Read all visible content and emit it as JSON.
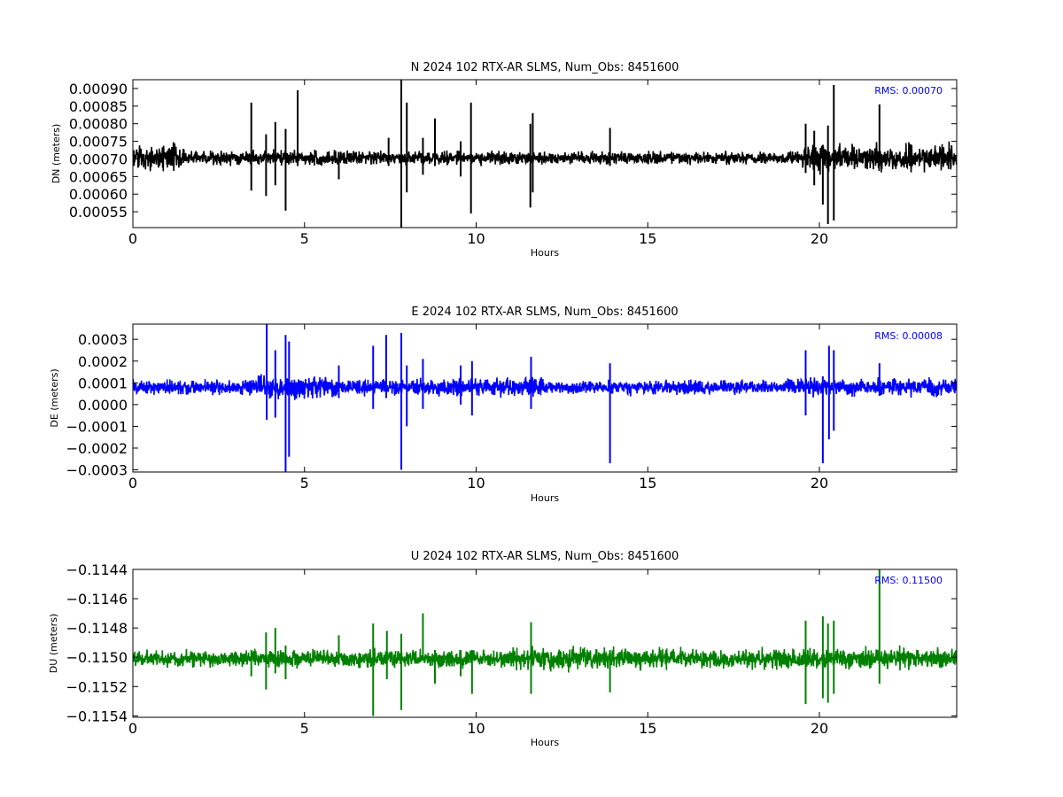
{
  "chart_data": [
    {
      "type": "line",
      "title": "N 2024 102 RTX-AR  SLMS, Num_Obs: 8451600",
      "xlabel": "Hours",
      "ylabel": "DN (meters)",
      "xlim": [
        0,
        24
      ],
      "ylim": [
        0.000505,
        0.000925
      ],
      "xticks": [
        0,
        5,
        10,
        15,
        20
      ],
      "xtick_labels": [
        "0",
        "5",
        "10",
        "15",
        "20"
      ],
      "yticks": [
        0.00055,
        0.0006,
        0.00065,
        0.0007,
        0.00075,
        0.0008,
        0.00085,
        0.0009
      ],
      "ytick_labels": [
        "0.00055",
        "0.00060",
        "0.00065",
        "0.00070",
        "0.00075",
        "0.00080",
        "0.00085",
        "0.00090"
      ],
      "annotation": "RMS:  0.00070",
      "annotation_color": "#0000ff",
      "series_color": "#000000",
      "grid": false,
      "baseline": 0.000703,
      "noise": [
        {
          "x": [
            0,
            1.5
          ],
          "amplitude": 3.2e-05
        },
        {
          "x": [
            1.5,
            7
          ],
          "amplitude": 1.8e-05
        },
        {
          "x": [
            7,
            12
          ],
          "amplitude": 1.6e-05
        },
        {
          "x": [
            12,
            19.5
          ],
          "amplitude": 1.5e-05
        },
        {
          "x": [
            19.5,
            24
          ],
          "amplitude": 3.2e-05
        }
      ],
      "spikes": [
        {
          "x": 3.45,
          "high": 0.00086,
          "low": 0.00061
        },
        {
          "x": 3.88,
          "high": 0.00077,
          "low": 0.000595
        },
        {
          "x": 4.15,
          "high": 0.000805,
          "low": 0.000625
        },
        {
          "x": 4.45,
          "high": 0.000785,
          "low": 0.000553
        },
        {
          "x": 4.8,
          "high": 0.000895,
          "low": 0.00068
        },
        {
          "x": 6.0,
          "high": 0.00072,
          "low": 0.000642
        },
        {
          "x": 7.45,
          "high": 0.00076,
          "low": 0.00068
        },
        {
          "x": 7.82,
          "high": 0.000925,
          "low": 0.000505
        },
        {
          "x": 7.98,
          "high": 0.00086,
          "low": 0.000605
        },
        {
          "x": 8.45,
          "high": 0.00076,
          "low": 0.000655
        },
        {
          "x": 8.8,
          "high": 0.000815,
          "low": 0.00068
        },
        {
          "x": 9.55,
          "high": 0.00075,
          "low": 0.00065
        },
        {
          "x": 9.85,
          "high": 0.00086,
          "low": 0.000545
        },
        {
          "x": 11.58,
          "high": 0.0008,
          "low": 0.000562
        },
        {
          "x": 11.65,
          "high": 0.00083,
          "low": 0.000605
        },
        {
          "x": 13.9,
          "high": 0.000788,
          "low": 0.00068
        },
        {
          "x": 19.6,
          "high": 0.0008,
          "low": 0.00066
        },
        {
          "x": 19.85,
          "high": 0.00078,
          "low": 0.000625
        },
        {
          "x": 20.1,
          "high": 0.00074,
          "low": 0.00057
        },
        {
          "x": 20.25,
          "high": 0.000795,
          "low": 0.000515
        },
        {
          "x": 20.42,
          "high": 0.00091,
          "low": 0.000525
        },
        {
          "x": 21.75,
          "high": 0.000855,
          "low": 0.00068
        }
      ]
    },
    {
      "type": "line",
      "title": "E 2024 102 RTX-AR  SLMS, Num_Obs: 8451600",
      "xlabel": "Hours",
      "ylabel": "DE (meters)",
      "xlim": [
        0,
        24
      ],
      "ylim": [
        -0.00031,
        0.00037
      ],
      "xticks": [
        0,
        5,
        10,
        15,
        20
      ],
      "xtick_labels": [
        "0",
        "5",
        "10",
        "15",
        "20"
      ],
      "yticks": [
        -0.0003,
        -0.0002,
        -0.0001,
        0.0,
        0.0001,
        0.0002,
        0.0003
      ],
      "ytick_labels": [
        "−0.0003",
        "−0.0002",
        "−0.0001",
        "0.0000",
        "0.0001",
        "0.0002",
        "0.0003"
      ],
      "annotation": "RMS:  0.00008",
      "annotation_color": "#0000ff",
      "series_color": "#0000ff",
      "grid": false,
      "baseline": 8e-05,
      "noise": [
        {
          "x": [
            0,
            3.5
          ],
          "amplitude": 3e-05
        },
        {
          "x": [
            3.5,
            6
          ],
          "amplitude": 4.5e-05
        },
        {
          "x": [
            6,
            12
          ],
          "amplitude": 3.5e-05
        },
        {
          "x": [
            12,
            19
          ],
          "amplitude": 2.8e-05
        },
        {
          "x": [
            19,
            24
          ],
          "amplitude": 3.5e-05
        }
      ],
      "spikes": [
        {
          "x": 3.9,
          "high": 0.00037,
          "low": -7e-05
        },
        {
          "x": 4.15,
          "high": 0.00025,
          "low": -6e-05
        },
        {
          "x": 4.45,
          "high": 0.00032,
          "low": -0.00031
        },
        {
          "x": 4.55,
          "high": 0.00029,
          "low": -0.00024
        },
        {
          "x": 6.0,
          "high": 0.00018,
          "low": 3e-05
        },
        {
          "x": 7.0,
          "high": 0.00027,
          "low": -2e-05
        },
        {
          "x": 7.38,
          "high": 0.00032,
          "low": 3e-05
        },
        {
          "x": 7.82,
          "high": 0.00033,
          "low": -0.0003
        },
        {
          "x": 7.98,
          "high": 0.00018,
          "low": -0.0001
        },
        {
          "x": 8.45,
          "high": 0.00021,
          "low": -2e-05
        },
        {
          "x": 9.55,
          "high": 0.00018,
          "low": 0.0
        },
        {
          "x": 9.88,
          "high": 0.0002,
          "low": -5e-05
        },
        {
          "x": 11.6,
          "high": 0.00022,
          "low": -2e-05
        },
        {
          "x": 13.9,
          "high": 0.00019,
          "low": -0.00027
        },
        {
          "x": 19.6,
          "high": 0.00025,
          "low": -5e-05
        },
        {
          "x": 20.1,
          "high": 0.00013,
          "low": -0.00027
        },
        {
          "x": 20.28,
          "high": 0.00027,
          "low": -0.00016
        },
        {
          "x": 20.42,
          "high": 0.00025,
          "low": -0.00012
        },
        {
          "x": 21.75,
          "high": 0.00019,
          "low": 4e-05
        }
      ]
    },
    {
      "type": "line",
      "title": "U 2024 102 RTX-AR  SLMS, Num_Obs: 8451600",
      "xlabel": "Hours",
      "ylabel": "DU (meters)",
      "xlim": [
        0,
        24
      ],
      "ylim": [
        -0.11541,
        -0.1144
      ],
      "xticks": [
        0,
        5,
        10,
        15,
        20
      ],
      "xtick_labels": [
        "0",
        "5",
        "10",
        "15",
        "20"
      ],
      "yticks": [
        -0.1154,
        -0.1152,
        -0.115,
        -0.1148,
        -0.1146,
        -0.1144
      ],
      "ytick_labels": [
        "−0.1154",
        "−0.1152",
        "−0.1150",
        "−0.1148",
        "−0.1146",
        "−0.1144"
      ],
      "annotation": "RMS:  0.11500",
      "annotation_color": "#0000ff",
      "series_color": "#008000",
      "grid": false,
      "baseline": -0.11501,
      "noise": [
        {
          "x": [
            0,
            11
          ],
          "amplitude": 5e-05
        },
        {
          "x": [
            11,
            14
          ],
          "amplitude": 6.5e-05
        },
        {
          "x": [
            14,
            19
          ],
          "amplitude": 6e-05
        },
        {
          "x": [
            19,
            24
          ],
          "amplitude": 6e-05
        }
      ],
      "spikes": [
        {
          "x": 3.45,
          "high": -0.11495,
          "low": -0.11513
        },
        {
          "x": 3.88,
          "high": -0.11483,
          "low": -0.11522
        },
        {
          "x": 4.15,
          "high": -0.1148,
          "low": -0.11511
        },
        {
          "x": 4.45,
          "high": -0.11492,
          "low": -0.11515
        },
        {
          "x": 6.0,
          "high": -0.11485,
          "low": -0.11505
        },
        {
          "x": 7.0,
          "high": -0.11477,
          "low": -0.1154
        },
        {
          "x": 7.4,
          "high": -0.11482,
          "low": -0.11515
        },
        {
          "x": 7.82,
          "high": -0.11484,
          "low": -0.11536
        },
        {
          "x": 8.45,
          "high": -0.1147,
          "low": -0.115
        },
        {
          "x": 8.8,
          "high": -0.11495,
          "low": -0.11518
        },
        {
          "x": 9.55,
          "high": -0.11495,
          "low": -0.11513
        },
        {
          "x": 9.88,
          "high": -0.11495,
          "low": -0.11525
        },
        {
          "x": 11.6,
          "high": -0.11476,
          "low": -0.11525
        },
        {
          "x": 13.9,
          "high": -0.11495,
          "low": -0.11524
        },
        {
          "x": 19.6,
          "high": -0.11475,
          "low": -0.11532
        },
        {
          "x": 20.1,
          "high": -0.11472,
          "low": -0.11528
        },
        {
          "x": 20.25,
          "high": -0.11477,
          "low": -0.11531
        },
        {
          "x": 20.42,
          "high": -0.11475,
          "low": -0.11525
        },
        {
          "x": 21.75,
          "high": -0.1144,
          "low": -0.11518
        }
      ]
    }
  ]
}
